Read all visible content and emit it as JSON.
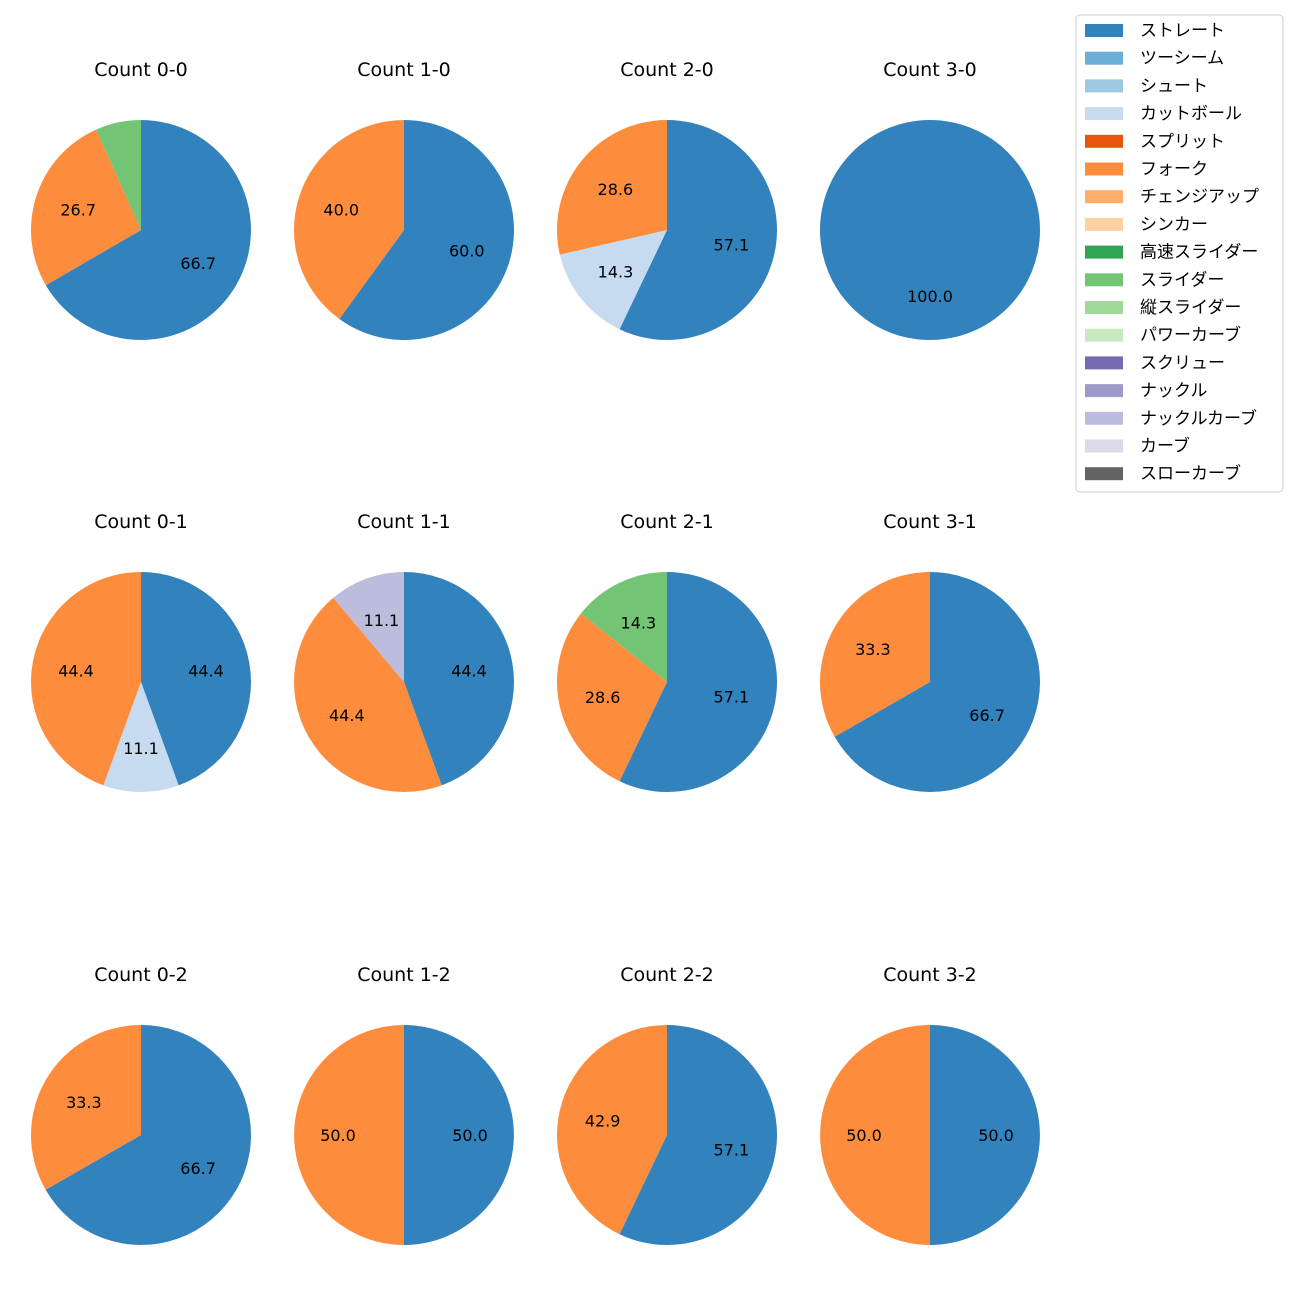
{
  "legend": {
    "items": [
      {
        "name": "ストレート",
        "color": "#3182bd"
      },
      {
        "name": "ツーシーム",
        "color": "#6baed6"
      },
      {
        "name": "シュート",
        "color": "#9ecae1"
      },
      {
        "name": "カットボール",
        "color": "#c6dbef"
      },
      {
        "name": "スプリット",
        "color": "#e6550d"
      },
      {
        "name": "フォーク",
        "color": "#fd8d3c"
      },
      {
        "name": "チェンジアップ",
        "color": "#fdae6b"
      },
      {
        "name": "シンカー",
        "color": "#fdd0a2"
      },
      {
        "name": "高速スライダー",
        "color": "#31a354"
      },
      {
        "name": "スライダー",
        "color": "#74c476"
      },
      {
        "name": "縦スライダー",
        "color": "#a1d99b"
      },
      {
        "name": "パワーカーブ",
        "color": "#c7e9c0"
      },
      {
        "name": "スクリュー",
        "color": "#756bb1"
      },
      {
        "name": "ナックル",
        "color": "#9e9ac8"
      },
      {
        "name": "ナックルカーブ",
        "color": "#bcbddc"
      },
      {
        "name": "カーブ",
        "color": "#dadaeb"
      },
      {
        "name": "スローカーブ",
        "color": "#636363"
      }
    ]
  },
  "chart_data": [
    {
      "type": "pie",
      "title": "Count 0-0",
      "slices": [
        {
          "pitch": "ストレート",
          "value": 66.7,
          "label": "66.7"
        },
        {
          "pitch": "フォーク",
          "value": 26.7,
          "label": "26.7"
        },
        {
          "pitch": "スライダー",
          "value": 6.7,
          "label": ""
        }
      ]
    },
    {
      "type": "pie",
      "title": "Count 1-0",
      "slices": [
        {
          "pitch": "ストレート",
          "value": 60.0,
          "label": "60.0"
        },
        {
          "pitch": "フォーク",
          "value": 40.0,
          "label": "40.0"
        }
      ]
    },
    {
      "type": "pie",
      "title": "Count 2-0",
      "slices": [
        {
          "pitch": "ストレート",
          "value": 57.1,
          "label": "57.1"
        },
        {
          "pitch": "カットボール",
          "value": 14.3,
          "label": "14.3"
        },
        {
          "pitch": "フォーク",
          "value": 28.6,
          "label": "28.6"
        }
      ]
    },
    {
      "type": "pie",
      "title": "Count 3-0",
      "slices": [
        {
          "pitch": "ストレート",
          "value": 100.0,
          "label": "100.0"
        }
      ]
    },
    {
      "type": "pie",
      "title": "Count 0-1",
      "slices": [
        {
          "pitch": "ストレート",
          "value": 44.4,
          "label": "44.4"
        },
        {
          "pitch": "カットボール",
          "value": 11.1,
          "label": "11.1"
        },
        {
          "pitch": "フォーク",
          "value": 44.4,
          "label": "44.4"
        }
      ]
    },
    {
      "type": "pie",
      "title": "Count 1-1",
      "slices": [
        {
          "pitch": "ストレート",
          "value": 44.4,
          "label": "44.4"
        },
        {
          "pitch": "フォーク",
          "value": 44.4,
          "label": "44.4"
        },
        {
          "pitch": "ナックルカーブ",
          "value": 11.1,
          "label": "11.1"
        }
      ]
    },
    {
      "type": "pie",
      "title": "Count 2-1",
      "slices": [
        {
          "pitch": "ストレート",
          "value": 57.1,
          "label": "57.1"
        },
        {
          "pitch": "フォーク",
          "value": 28.6,
          "label": "28.6"
        },
        {
          "pitch": "スライダー",
          "value": 14.3,
          "label": "14.3"
        }
      ]
    },
    {
      "type": "pie",
      "title": "Count 3-1",
      "slices": [
        {
          "pitch": "ストレート",
          "value": 66.7,
          "label": "66.7"
        },
        {
          "pitch": "フォーク",
          "value": 33.3,
          "label": "33.3"
        }
      ]
    },
    {
      "type": "pie",
      "title": "Count 0-2",
      "slices": [
        {
          "pitch": "ストレート",
          "value": 66.7,
          "label": "66.7"
        },
        {
          "pitch": "フォーク",
          "value": 33.3,
          "label": "33.3"
        }
      ]
    },
    {
      "type": "pie",
      "title": "Count 1-2",
      "slices": [
        {
          "pitch": "ストレート",
          "value": 50.0,
          "label": "50.0"
        },
        {
          "pitch": "フォーク",
          "value": 50.0,
          "label": "50.0"
        }
      ]
    },
    {
      "type": "pie",
      "title": "Count 2-2",
      "slices": [
        {
          "pitch": "ストレート",
          "value": 57.1,
          "label": "57.1"
        },
        {
          "pitch": "フォーク",
          "value": 42.9,
          "label": "42.9"
        }
      ]
    },
    {
      "type": "pie",
      "title": "Count 3-2",
      "slices": [
        {
          "pitch": "ストレート",
          "value": 50.0,
          "label": "50.0"
        },
        {
          "pitch": "フォーク",
          "value": 50.0,
          "label": "50.0"
        }
      ]
    }
  ]
}
